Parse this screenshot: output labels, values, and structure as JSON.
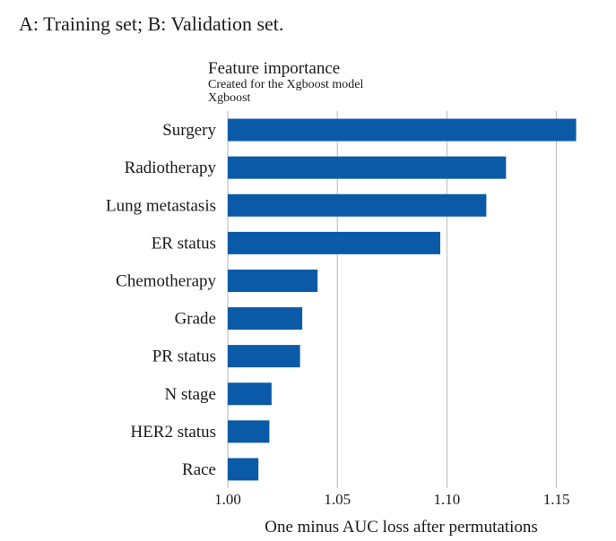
{
  "caption": "A: Training set; B: Validation set.",
  "chart_data": {
    "type": "bar",
    "orientation": "horizontal",
    "title": "Feature importance",
    "subtitle": "Created for the Xgboost model",
    "series_label": "Xgboost",
    "xlabel": "One minus AUC loss after permutations",
    "ylabel": "",
    "categories": [
      "Surgery",
      "Radiotherapy",
      "Lung metastasis",
      "ER status",
      "Chemotherapy",
      "Grade",
      "PR status",
      "N stage",
      "HER2 status",
      "Race"
    ],
    "values": [
      1.159,
      1.127,
      1.118,
      1.097,
      1.041,
      1.034,
      1.033,
      1.02,
      1.019,
      1.014
    ],
    "xlim": [
      1.0,
      1.16
    ],
    "xticks": [
      "1.00",
      "1.05",
      "1.10",
      "1.15"
    ],
    "grid": true,
    "bar_color": "#0a5aa8",
    "grid_color": "#b8b8b8"
  }
}
